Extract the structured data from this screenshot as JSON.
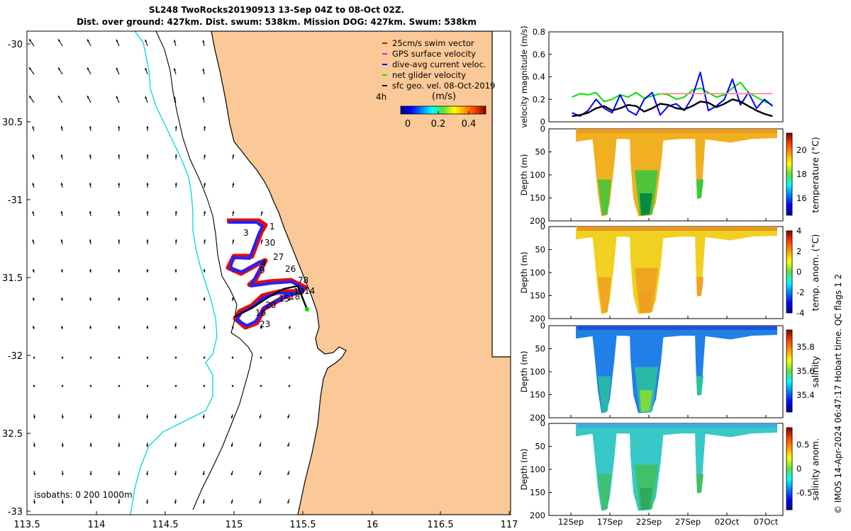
{
  "header": {
    "line1": "SL248 TwoRocks20190913 13-Sep 04Z to 08-Oct 02Z.",
    "line2": "Dist. over ground: 427km. Dist. swum: 538km. Mission DOG: 427km. Swum: 538km"
  },
  "map": {
    "lon_ticks": [
      "113.5",
      "114",
      "114.5",
      "115",
      "115.5",
      "16",
      "116.5",
      "117"
    ],
    "lat_ticks": [
      "-30",
      "30.5",
      "-31",
      "31.5",
      "-32",
      "32.5",
      "-33"
    ],
    "legend": [
      {
        "label": "25cm/s swim vector",
        "color": "#e00000"
      },
      {
        "label": "GPS surface velocity",
        "color": "#ff00ff"
      },
      {
        "label": "dive-avg current veloc.",
        "color": "#0000ff"
      },
      {
        "label": "net glider velocity",
        "color": "#00ee00"
      },
      {
        "label": "sfc geo. vel. 08-Oct-2019",
        "color": "#000000"
      }
    ],
    "legend_extra": "4h",
    "speed_bar_title": "(m/s)",
    "speed_bar_ticks": [
      "0",
      "0.2",
      "0.4"
    ],
    "isobaths_label": "isobaths: 0   200  1000m",
    "track_labels": [
      "1",
      "3",
      "30",
      "27",
      "4",
      "9",
      "26",
      "78",
      "19",
      "14",
      "18",
      "15",
      "20",
      "16",
      "23"
    ]
  },
  "chart_data": [
    {
      "type": "line",
      "title": "",
      "ylabel": "velocity magnitude (m/s)",
      "ylim": [
        0,
        0.8
      ],
      "yticks": [
        "0",
        "0.2",
        "0.4",
        "0.6",
        "0.8"
      ],
      "x": [
        13,
        14,
        15,
        16,
        17,
        18,
        19,
        20,
        21,
        22,
        23,
        24,
        25,
        26,
        27,
        28,
        29,
        30,
        31,
        32,
        33,
        34,
        35,
        36,
        37,
        38
      ],
      "series": [
        {
          "name": "net glider velocity",
          "color": "#00e000",
          "values": [
            0.22,
            0.25,
            0.24,
            0.26,
            0.18,
            0.2,
            0.24,
            0.22,
            0.26,
            0.21,
            0.23,
            0.25,
            0.24,
            0.2,
            0.22,
            0.28,
            0.3,
            0.26,
            0.22,
            0.24,
            0.3,
            0.35,
            0.26,
            0.22,
            0.18,
            0.15
          ]
        },
        {
          "name": "dive-avg current veloc.",
          "color": "#0000ff",
          "values": [
            0.08,
            0.05,
            0.1,
            0.2,
            0.12,
            0.08,
            0.24,
            0.1,
            0.06,
            0.2,
            0.26,
            0.06,
            0.14,
            0.16,
            0.1,
            0.22,
            0.44,
            0.1,
            0.14,
            0.2,
            0.38,
            0.15,
            0.26,
            0.12,
            0.2,
            0.14
          ]
        },
        {
          "name": "sfc geo. vel.",
          "color": "#000000",
          "values": [
            0.05,
            0.06,
            0.08,
            0.12,
            0.14,
            0.1,
            0.12,
            0.15,
            0.14,
            0.09,
            0.12,
            0.16,
            0.15,
            0.12,
            0.11,
            0.14,
            0.18,
            0.17,
            0.13,
            0.16,
            0.2,
            0.18,
            0.14,
            0.1,
            0.07,
            0.05
          ]
        },
        {
          "name": "swim",
          "color": "#ff9090",
          "values": [
            null,
            null,
            null,
            null,
            null,
            null,
            null,
            null,
            null,
            null,
            null,
            0.25,
            0.25,
            0.25,
            0.25,
            0.25,
            0.25,
            0.25,
            0.25,
            0.25,
            0.25,
            0.25,
            0.25,
            0.25,
            0.25,
            0.25
          ]
        }
      ]
    },
    {
      "type": "heatmap",
      "ylabel": "Depth (m)",
      "colorbar_label": "temperature (°C)",
      "colorbar_ticks": [
        "16",
        "18",
        "20"
      ],
      "yticks": [
        "0",
        "50",
        "100",
        "150",
        "200"
      ],
      "ylim": [
        0,
        200
      ]
    },
    {
      "type": "heatmap",
      "ylabel": "Depth (m)",
      "colorbar_label": "temp. anom. (°C)",
      "colorbar_ticks": [
        "-4",
        "-2",
        "0",
        "2",
        "4"
      ],
      "yticks": [
        "0",
        "50",
        "100",
        "150",
        "200"
      ],
      "ylim": [
        0,
        200
      ]
    },
    {
      "type": "heatmap",
      "ylabel": "Depth (m)",
      "colorbar_label": "salinity",
      "colorbar_ticks": [
        "35.4",
        "35.6",
        "35.8"
      ],
      "yticks": [
        "0",
        "50",
        "100",
        "150",
        "200"
      ],
      "ylim": [
        0,
        200
      ]
    },
    {
      "type": "heatmap",
      "ylabel": "Depth (m)",
      "colorbar_label": "salinity anom.",
      "colorbar_ticks": [
        "-0.5",
        "0",
        "0.5"
      ],
      "yticks": [
        "0",
        "50",
        "100",
        "150",
        "200"
      ],
      "ylim": [
        0,
        200
      ],
      "x_tick_labels": [
        "12Sep",
        "17Sep",
        "22Sep",
        "27Sep",
        "02Oct",
        "07Oct"
      ]
    }
  ],
  "footer": {
    "credit": "© IMOS 14-Apr-2024 06:47:17 Hobart time. QC flags 1  2"
  }
}
